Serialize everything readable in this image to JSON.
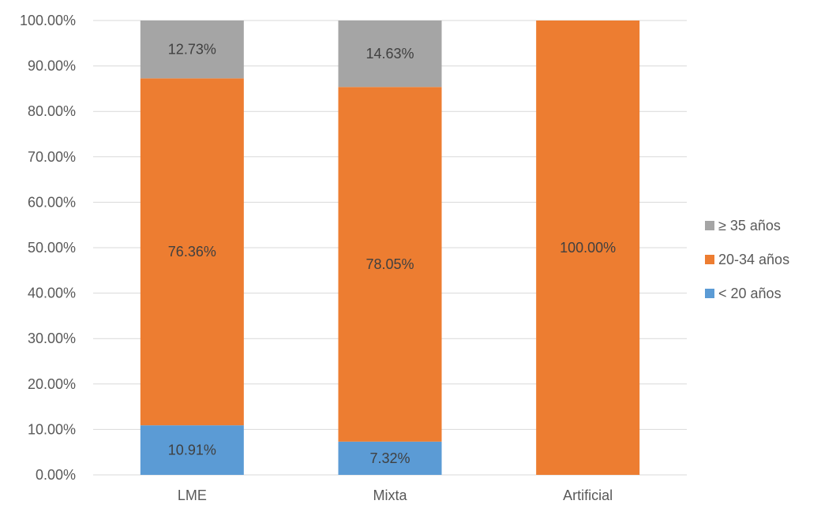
{
  "chart_data": {
    "type": "bar",
    "stacked": true,
    "categories": [
      "LME",
      "Mixta",
      "Artificial"
    ],
    "series": [
      {
        "name": "< 20 años",
        "color": "#5B9BD5",
        "values": [
          10.91,
          7.32,
          0
        ],
        "labels": [
          "10.91%",
          "7.32%",
          ""
        ]
      },
      {
        "name": "20-34 años",
        "color": "#ED7D31",
        "values": [
          76.36,
          78.05,
          100
        ],
        "labels": [
          "76.36%",
          "78.05%",
          "100.00%"
        ]
      },
      {
        "name": "≥ 35 años",
        "color": "#A5A5A5",
        "values": [
          12.73,
          14.63,
          0
        ],
        "labels": [
          "12.73%",
          "14.63%",
          ""
        ]
      }
    ],
    "ylim": [
      0,
      100
    ],
    "yticks": [
      0,
      10,
      20,
      30,
      40,
      50,
      60,
      70,
      80,
      90,
      100
    ],
    "ytick_labels": [
      "0.00%",
      "10.00%",
      "20.00%",
      "30.00%",
      "40.00%",
      "50.00%",
      "60.00%",
      "70.00%",
      "80.00%",
      "90.00%",
      "100.00%"
    ],
    "legend": {
      "placement": "right",
      "order": [
        "≥ 35 años",
        "20-34 años",
        "< 20 años"
      ]
    },
    "grid": true,
    "gridline_color": "#D9D9D9"
  }
}
